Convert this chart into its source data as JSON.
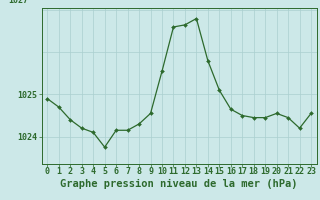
{
  "x": [
    0,
    1,
    2,
    3,
    4,
    5,
    6,
    7,
    8,
    9,
    10,
    11,
    12,
    13,
    14,
    15,
    16,
    17,
    18,
    19,
    20,
    21,
    22,
    23
  ],
  "y": [
    1024.9,
    1024.7,
    1024.4,
    1024.2,
    1024.1,
    1023.75,
    1024.15,
    1024.15,
    1024.3,
    1024.55,
    1025.55,
    1026.6,
    1026.65,
    1026.8,
    1025.8,
    1025.1,
    1024.65,
    1024.5,
    1024.45,
    1024.45,
    1024.55,
    1024.45,
    1024.2,
    1024.55
  ],
  "line_color": "#2d6a2d",
  "marker_color": "#2d6a2d",
  "bg_color": "#cce8e8",
  "grid_color": "#aacfcf",
  "xlabel": "Graphe pression niveau de la mer (hPa)",
  "xlabel_fontsize": 7.5,
  "tick_fontsize": 6.0,
  "ytick_labels": [
    "1024",
    "1025"
  ],
  "ytick_values": [
    1024,
    1025
  ],
  "ylim": [
    1023.35,
    1027.05
  ],
  "xlim": [
    -0.5,
    23.5
  ]
}
